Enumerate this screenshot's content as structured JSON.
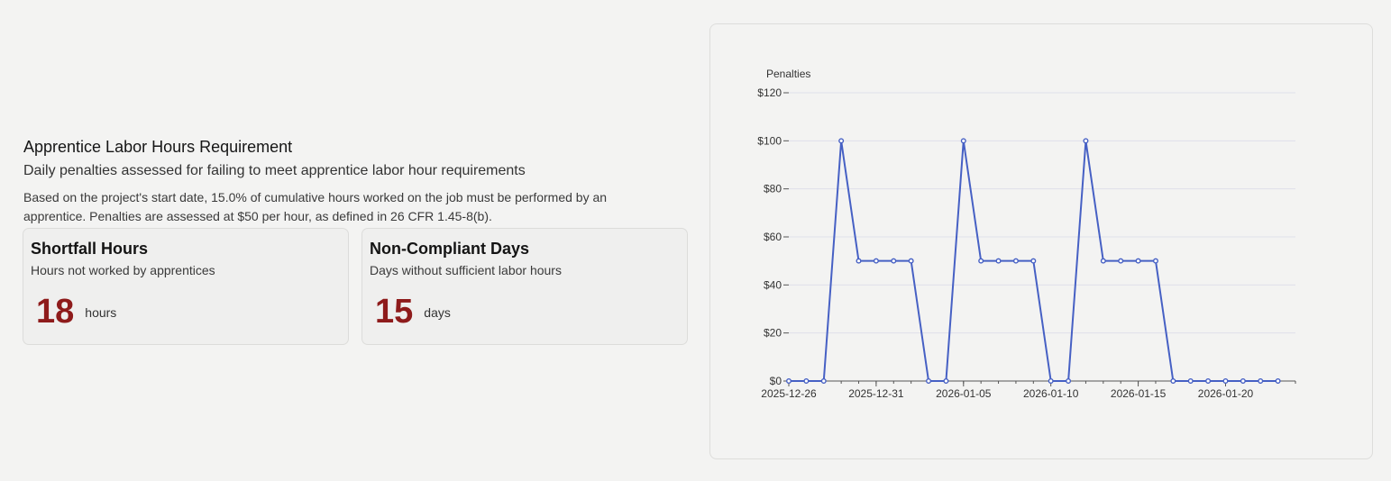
{
  "requirement": {
    "title": "Apprentice Labor Hours Requirement",
    "subtitle": "Daily penalties assessed for failing to meet apprentice labor hour requirements",
    "description": "Based on the project's start date, 15.0% of cumulative hours worked on the job must be performed by an apprentice. Penalties are assessed at $50 per hour, as defined in 26 CFR 1.45-8(b)."
  },
  "cards": [
    {
      "title": "Shortfall Hours",
      "subtitle": "Hours not worked by apprentices",
      "value": "18",
      "unit": "hours"
    },
    {
      "title": "Non-Compliant Days",
      "subtitle": "Days without sufficient labor hours",
      "value": "15",
      "unit": "days"
    }
  ],
  "colors": {
    "accent_value": "#8e1b1b",
    "line": "#4660c4",
    "grid": "#dfe0ea"
  },
  "chart_data": {
    "type": "line",
    "title": "",
    "ylabel": "Penalties",
    "xlabel": "",
    "ylim": [
      0,
      120
    ],
    "xlim": [
      "2025-12-26",
      "2026-01-24"
    ],
    "y_ticks": [
      0,
      20,
      40,
      60,
      80,
      100,
      120
    ],
    "y_tick_labels": [
      "$0",
      "$20",
      "$40",
      "$60",
      "$80",
      "$100",
      "$120"
    ],
    "x_ticks": [
      "2025-12-26",
      "2025-12-31",
      "2026-01-05",
      "2026-01-10",
      "2026-01-15",
      "2026-01-20"
    ],
    "grid": "horizontal",
    "legend": "none",
    "series": [
      {
        "x": [
          "2025-12-26",
          "2025-12-27",
          "2025-12-28",
          "2025-12-29",
          "2025-12-30",
          "2025-12-31",
          "2026-01-01",
          "2026-01-02",
          "2026-01-03",
          "2026-01-04",
          "2026-01-05",
          "2026-01-06",
          "2026-01-07",
          "2026-01-08",
          "2026-01-09",
          "2026-01-10",
          "2026-01-11",
          "2026-01-12",
          "2026-01-13",
          "2026-01-14",
          "2026-01-15",
          "2026-01-16",
          "2026-01-17",
          "2026-01-18",
          "2026-01-19",
          "2026-01-20",
          "2026-01-21",
          "2026-01-22",
          "2026-01-23"
        ],
        "values": [
          0,
          0,
          0,
          100,
          50,
          50,
          50,
          50,
          0,
          0,
          100,
          50,
          50,
          50,
          50,
          0,
          0,
          100,
          50,
          50,
          50,
          50,
          0,
          0,
          0,
          0,
          0,
          0,
          0
        ]
      }
    ]
  }
}
